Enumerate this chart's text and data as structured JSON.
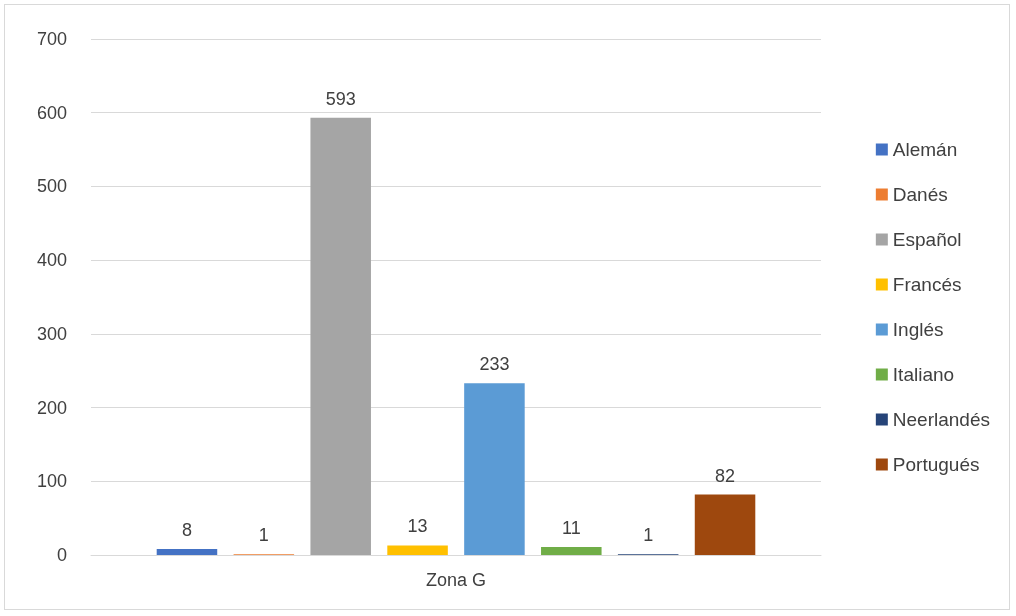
{
  "chart_data": {
    "type": "bar",
    "categories": [
      "Zona G"
    ],
    "series": [
      {
        "name": "Alemán",
        "color": "#4472c4",
        "values": [
          8
        ]
      },
      {
        "name": "Danés",
        "color": "#ed7d31",
        "values": [
          1
        ]
      },
      {
        "name": "Español",
        "color": "#a5a5a5",
        "values": [
          593
        ]
      },
      {
        "name": "Francés",
        "color": "#ffc000",
        "values": [
          13
        ]
      },
      {
        "name": "Inglés",
        "color": "#5b9bd5",
        "values": [
          233
        ]
      },
      {
        "name": "Italiano",
        "color": "#70ad47",
        "values": [
          11
        ]
      },
      {
        "name": "Neerlandés",
        "color": "#264478",
        "values": [
          1
        ]
      },
      {
        "name": "Portugués",
        "color": "#9e480e",
        "values": [
          82
        ]
      }
    ],
    "ylim": [
      0,
      700
    ],
    "yticks": [
      0,
      100,
      200,
      300,
      400,
      500,
      600,
      700
    ],
    "grid": "y",
    "legend": "right",
    "data_labels": true
  }
}
